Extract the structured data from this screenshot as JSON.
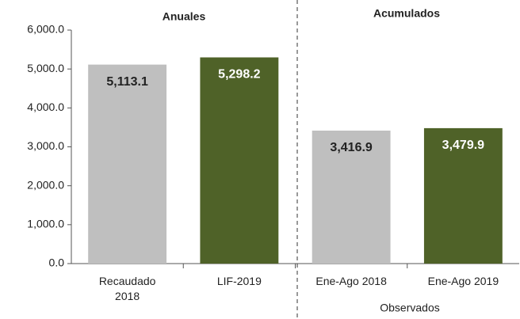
{
  "chart_data": {
    "type": "bar",
    "categories": [
      "Recaudado 2018",
      "LIF-2019",
      "Ene-Ago 2018",
      "Ene-Ago 2019"
    ],
    "values": [
      5113.1,
      5298.2,
      3416.9,
      3479.9
    ],
    "value_labels": [
      "5,113.1",
      "5,298.2",
      "3,416.9",
      "3,479.9"
    ],
    "colors": [
      "#bfbfbf",
      "#4f6228",
      "#bfbfbf",
      "#4f6228"
    ],
    "label_colors": [
      "#222222",
      "#ffffff",
      "#222222",
      "#ffffff"
    ],
    "group_labels": [
      "Anuales",
      "Acumulados"
    ],
    "sub_label": "Observados",
    "ylim": [
      0,
      6000
    ],
    "yticks": [
      {
        "value": 0,
        "label": "0.0"
      },
      {
        "value": 1000,
        "label": "1,000.0"
      },
      {
        "value": 2000,
        "label": "2,000.0"
      },
      {
        "value": 3000,
        "label": "3,000.0"
      },
      {
        "value": 4000,
        "label": "4,000.0"
      },
      {
        "value": 5000,
        "label": "5,000.0"
      },
      {
        "value": 6000,
        "label": "6,000.0"
      }
    ],
    "grid": false
  }
}
